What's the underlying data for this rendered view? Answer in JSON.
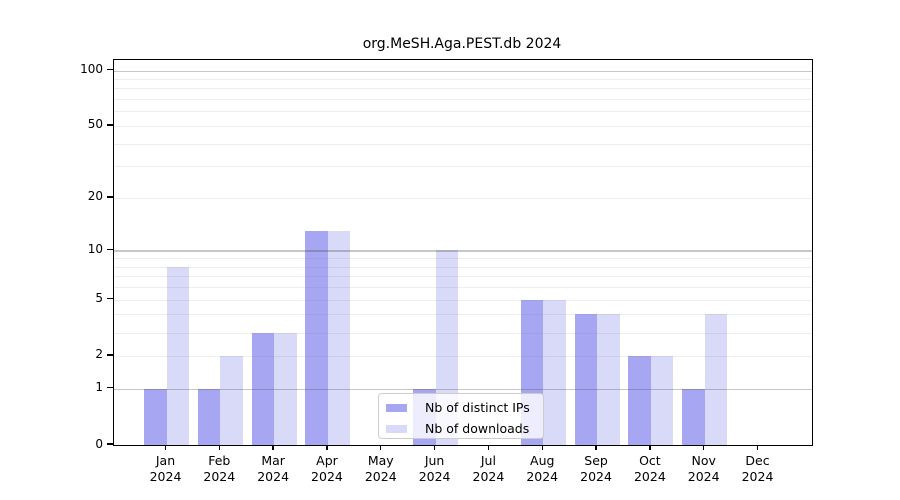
{
  "title": "org.MeSH.Aga.PEST.db 2024",
  "chart_data": {
    "type": "bar",
    "title": "org.MeSH.Aga.PEST.db 2024",
    "categories": [
      "Jan",
      "Feb",
      "Mar",
      "Apr",
      "May",
      "Jun",
      "Jul",
      "Aug",
      "Sep",
      "Oct",
      "Nov",
      "Dec"
    ],
    "year": "2024",
    "series": [
      {
        "name": "Nb of distinct IPs",
        "color": "#a6a6f2",
        "values": [
          1,
          1,
          3,
          13,
          0,
          1,
          0,
          5,
          4,
          2,
          1,
          0
        ]
      },
      {
        "name": "Nb of downloads",
        "color": "#d9d9f8",
        "values": [
          8,
          2,
          3,
          13,
          0,
          10,
          0,
          5,
          4,
          2,
          4,
          0
        ]
      }
    ],
    "xlabel": "",
    "ylabel": "",
    "yscale": "log1p",
    "ylim": [
      0,
      100
    ],
    "yticks": [
      0,
      1,
      2,
      5,
      10,
      20,
      50,
      100
    ],
    "major_gridlines": [
      1,
      10,
      100
    ],
    "minor_gridlines": [
      2,
      3,
      4,
      5,
      6,
      7,
      8,
      9,
      20,
      30,
      40,
      50,
      60,
      70,
      80,
      90
    ],
    "grid": true,
    "legend_position": "lower center"
  }
}
